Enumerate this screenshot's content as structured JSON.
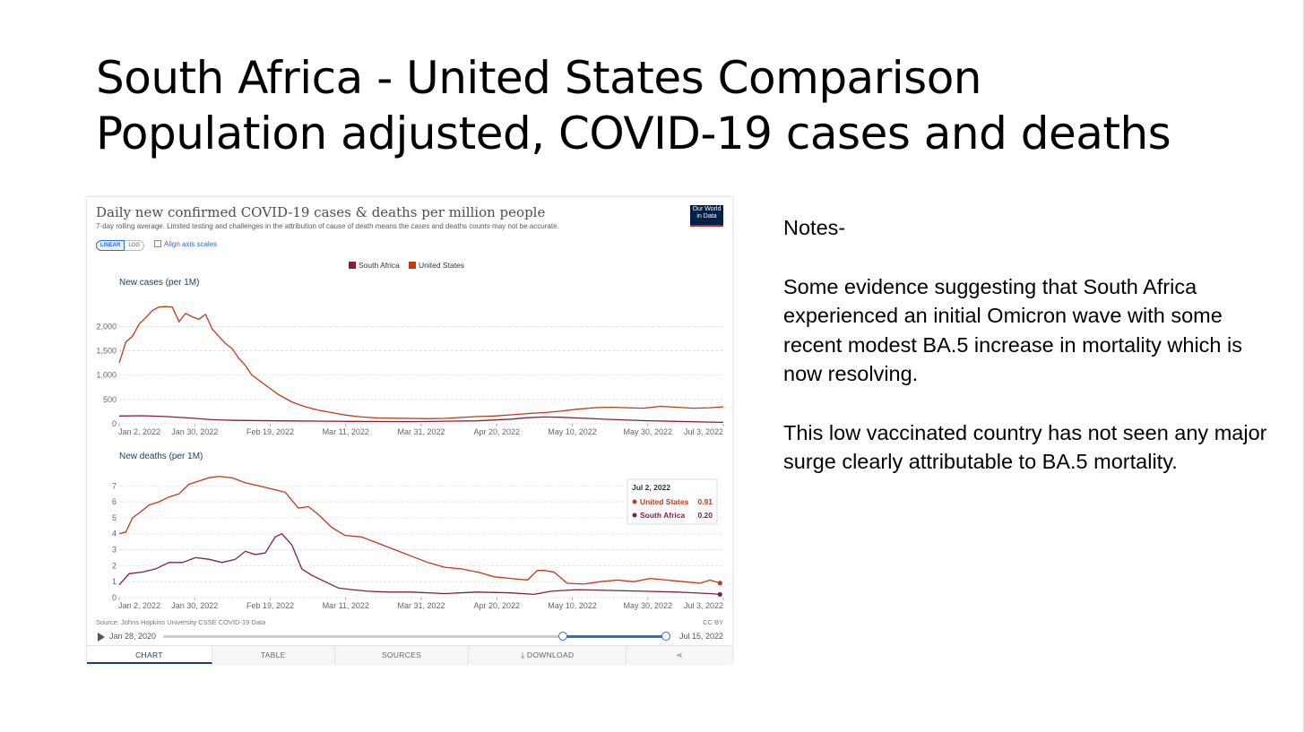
{
  "slide": {
    "title_line1": "South Africa - United States Comparison",
    "title_line2": "Population adjusted, COVID-19 cases and deaths",
    "notes": {
      "heading": "Notes-",
      "paragraph1": "Some evidence suggesting that South Africa experienced an initial Omicron wave with some recent modest BA.5 increase in mortality which is now resolving.",
      "paragraph2": "This low vaccinated country has not seen any major surge clearly attributable to BA.5 mortality."
    }
  },
  "owid": {
    "title": "Daily new confirmed COVID-19 cases & deaths per million people",
    "subtitle": "7-day rolling average. Limited testing and challenges in the attribution of cause of death means the cases and deaths counts may not be accurate.",
    "logo_line1": "Our World",
    "logo_line2": "in Data",
    "scale_linear": "LINEAR",
    "scale_log": "LOG",
    "align_axis": "Align axis scales",
    "source": "Source: Johns Hopkins University CSSE COVID-19 Data",
    "license": "CC BY",
    "timeline_start": "Jan 28, 2020",
    "timeline_end": "Jul 15, 2022",
    "tabs": [
      "CHART",
      "TABLE",
      "SOURCES",
      "DOWNLOAD",
      ""
    ],
    "tooltip": {
      "date": "Jul 2, 2022",
      "rows": [
        {
          "name": "United States",
          "value": "0.91"
        },
        {
          "name": "South Africa",
          "value": "0.20"
        }
      ]
    }
  },
  "colors": {
    "south_africa": "#86203a",
    "united_states": "#c13a17",
    "accent": "#2c6ed5",
    "grid": "#dddddd"
  },
  "chart_data": [
    {
      "type": "line",
      "title": "New cases (per 1M)",
      "legend": [
        "South Africa",
        "United States"
      ],
      "legend_position": "top",
      "x_ticks": [
        "Jan 2, 2022",
        "Jan 30, 2022",
        "Feb 19, 2022",
        "Mar 11, 2022",
        "Mar 31, 2022",
        "Apr 20, 2022",
        "May 10, 2022",
        "May 30, 2022",
        "Jul 3, 2022"
      ],
      "y_ticks": [
        "0",
        "500",
        "1,000",
        "1,500",
        "2,000"
      ],
      "ylim": [
        0,
        2450
      ],
      "xlim": [
        "2022-01-02",
        "2022-07-03"
      ],
      "grid": true,
      "series": [
        {
          "name": "United States",
          "color": "#c13a17",
          "x": [
            "2022-01-02",
            "2022-01-04",
            "2022-01-06",
            "2022-01-08",
            "2022-01-10",
            "2022-01-12",
            "2022-01-14",
            "2022-01-16",
            "2022-01-18",
            "2022-01-20",
            "2022-01-22",
            "2022-01-24",
            "2022-01-26",
            "2022-01-28",
            "2022-01-30",
            "2022-02-01",
            "2022-02-03",
            "2022-02-05",
            "2022-02-07",
            "2022-02-09",
            "2022-02-11",
            "2022-02-13",
            "2022-02-15",
            "2022-02-19",
            "2022-02-23",
            "2022-02-27",
            "2022-03-03",
            "2022-03-07",
            "2022-03-11",
            "2022-03-16",
            "2022-03-21",
            "2022-03-26",
            "2022-03-31",
            "2022-04-05",
            "2022-04-10",
            "2022-04-15",
            "2022-04-20",
            "2022-04-25",
            "2022-04-30",
            "2022-05-05",
            "2022-05-10",
            "2022-05-15",
            "2022-05-20",
            "2022-05-25",
            "2022-05-30",
            "2022-06-04",
            "2022-06-09",
            "2022-06-14",
            "2022-06-19",
            "2022-06-24",
            "2022-06-29",
            "2022-07-03"
          ],
          "y": [
            1250,
            1680,
            1800,
            2050,
            2180,
            2330,
            2400,
            2410,
            2400,
            2100,
            2270,
            2200,
            2150,
            2250,
            1950,
            1800,
            1650,
            1550,
            1350,
            1200,
            1000,
            900,
            800,
            600,
            450,
            350,
            280,
            230,
            180,
            140,
            120,
            115,
            110,
            105,
            110,
            130,
            150,
            160,
            185,
            210,
            230,
            260,
            300,
            330,
            340,
            330,
            320,
            360,
            340,
            320,
            330,
            350
          ]
        },
        {
          "name": "South Africa",
          "color": "#86203a",
          "x": [
            "2022-01-02",
            "2022-01-09",
            "2022-01-16",
            "2022-01-23",
            "2022-01-30",
            "2022-02-06",
            "2022-02-19",
            "2022-03-11",
            "2022-03-31",
            "2022-04-20",
            "2022-04-30",
            "2022-05-05",
            "2022-05-10",
            "2022-05-15",
            "2022-05-20",
            "2022-05-30",
            "2022-06-09",
            "2022-06-19",
            "2022-06-29",
            "2022-07-03"
          ],
          "y": [
            160,
            165,
            150,
            120,
            85,
            70,
            60,
            50,
            45,
            60,
            95,
            125,
            140,
            135,
            120,
            90,
            65,
            50,
            35,
            30
          ]
        }
      ]
    },
    {
      "type": "line",
      "title": "New deaths (per 1M)",
      "legend": [
        "South Africa",
        "United States"
      ],
      "legend_position": "top",
      "x_ticks": [
        "Jan 2, 2022",
        "Jan 30, 2022",
        "Feb 19, 2022",
        "Mar 11, 2022",
        "Mar 31, 2022",
        "Apr 20, 2022",
        "May 10, 2022",
        "May 30, 2022",
        "Jul 3, 2022"
      ],
      "y_ticks": [
        "0",
        "1",
        "2",
        "3",
        "4",
        "5",
        "6",
        "7"
      ],
      "ylim": [
        0,
        7.8
      ],
      "xlim": [
        "2022-01-02",
        "2022-07-03"
      ],
      "grid": true,
      "series": [
        {
          "name": "United States",
          "color": "#c13a17",
          "x": [
            "2022-01-02",
            "2022-01-04",
            "2022-01-06",
            "2022-01-08",
            "2022-01-11",
            "2022-01-14",
            "2022-01-17",
            "2022-01-20",
            "2022-01-23",
            "2022-01-26",
            "2022-01-29",
            "2022-02-01",
            "2022-02-05",
            "2022-02-09",
            "2022-02-13",
            "2022-02-17",
            "2022-02-21",
            "2022-02-25",
            "2022-02-28",
            "2022-03-03",
            "2022-03-07",
            "2022-03-11",
            "2022-03-16",
            "2022-03-21",
            "2022-03-26",
            "2022-03-31",
            "2022-04-05",
            "2022-04-10",
            "2022-04-15",
            "2022-04-20",
            "2022-04-25",
            "2022-04-30",
            "2022-05-05",
            "2022-05-08",
            "2022-05-10",
            "2022-05-13",
            "2022-05-17",
            "2022-05-22",
            "2022-05-27",
            "2022-06-01",
            "2022-06-06",
            "2022-06-11",
            "2022-06-16",
            "2022-06-21",
            "2022-06-26",
            "2022-06-29",
            "2022-07-02"
          ],
          "y": [
            4.0,
            4.1,
            5.0,
            5.3,
            5.8,
            6.0,
            6.3,
            6.5,
            7.1,
            7.3,
            7.5,
            7.6,
            7.5,
            7.2,
            7.0,
            6.8,
            6.6,
            5.6,
            5.7,
            5.2,
            4.4,
            3.9,
            3.8,
            3.4,
            3.0,
            2.6,
            2.2,
            1.9,
            1.8,
            1.6,
            1.3,
            1.2,
            1.1,
            1.7,
            1.7,
            1.6,
            0.9,
            0.85,
            1.0,
            1.1,
            1.0,
            1.2,
            1.1,
            1.0,
            0.9,
            1.1,
            0.91
          ]
        },
        {
          "name": "South Africa",
          "color": "#86203a",
          "x": [
            "2022-01-02",
            "2022-01-05",
            "2022-01-09",
            "2022-01-13",
            "2022-01-17",
            "2022-01-21",
            "2022-01-25",
            "2022-01-29",
            "2022-02-02",
            "2022-02-06",
            "2022-02-09",
            "2022-02-12",
            "2022-02-15",
            "2022-02-18",
            "2022-02-20",
            "2022-02-23",
            "2022-02-26",
            "2022-03-01",
            "2022-03-05",
            "2022-03-09",
            "2022-03-13",
            "2022-03-18",
            "2022-03-24",
            "2022-03-31",
            "2022-04-10",
            "2022-04-20",
            "2022-04-30",
            "2022-05-07",
            "2022-05-12",
            "2022-05-20",
            "2022-05-30",
            "2022-06-09",
            "2022-06-19",
            "2022-06-29",
            "2022-07-02"
          ],
          "y": [
            0.8,
            1.5,
            1.6,
            1.8,
            2.2,
            2.2,
            2.5,
            2.4,
            2.2,
            2.4,
            2.9,
            2.7,
            2.8,
            3.8,
            4.0,
            3.3,
            1.8,
            1.4,
            1.0,
            0.6,
            0.5,
            0.4,
            0.35,
            0.35,
            0.25,
            0.35,
            0.3,
            0.2,
            0.4,
            0.5,
            0.45,
            0.4,
            0.35,
            0.25,
            0.2
          ]
        }
      ]
    }
  ]
}
